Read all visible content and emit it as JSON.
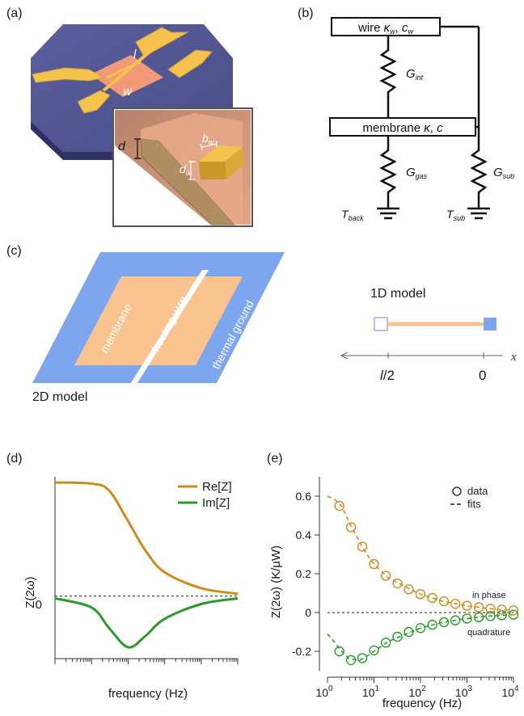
{
  "panels": {
    "a": {
      "label": "(a)",
      "dims": {
        "l": "l",
        "w": "w",
        "d": "d",
        "dw": "d",
        "dw_sub": "w",
        "bw": "b",
        "bw_sub": "w"
      }
    },
    "b": {
      "label": "(b)",
      "wire_box": {
        "text": "wire ",
        "kappa": "κ",
        "kappa_sub": "w",
        "sep": ", ",
        "c": "c",
        "c_sub": "w"
      },
      "membrane_box": {
        "text": "membrane ",
        "kappa": "κ",
        "sep": ", ",
        "c": "c"
      },
      "g_int": {
        "g": "G",
        "sub": "int"
      },
      "g_gas": {
        "g": "G",
        "sub": "gas"
      },
      "g_sub": {
        "g": "G",
        "sub": "sub"
      },
      "t_back": {
        "t": "T",
        "sub": "back"
      },
      "t_sub": {
        "t": "T",
        "sub": "sub"
      }
    },
    "c": {
      "label": "(c)",
      "membrane": "membrane",
      "heating_wire": "heating wire",
      "thermal_ground": "thermal ground",
      "model_2d": "2D model",
      "model_1d": "1D model",
      "axis_var": "x",
      "tick_half": {
        "l": "l",
        "rest": "/2"
      },
      "tick_zero": "0"
    },
    "d": {
      "label": "(d)",
      "ylabel": "Z(2ω)",
      "xlabel": "frequency (Hz)",
      "y_zero_tick": "0",
      "legend": [
        "Re[Z]",
        "Im[Z]"
      ]
    },
    "e": {
      "label": "(e)",
      "ylabel": "Z(2ω) (K/μW)",
      "xlabel": "frequency (Hz)",
      "legend": [
        "data",
        "fits"
      ],
      "annot_in_phase": "in phase",
      "annot_quadrature": "quadrature",
      "xtick_base": "10",
      "xtick_exps": [
        "0",
        "1",
        "2",
        "3",
        "4"
      ],
      "yticks": [
        "0.6",
        "0.4",
        "0.2",
        "0",
        "-0.2"
      ]
    }
  },
  "colors": {
    "re": "#d08a1c",
    "im": "#2a9a2a",
    "substrate": "#5c609a",
    "pad": "#f5c24e",
    "membrane_pink": "#f29a78",
    "blue": "#7ea6ee",
    "orange": "#f8c38e"
  },
  "chart_data": [
    {
      "type": "line",
      "panel": "d",
      "xscale": "log",
      "xlabel": "frequency (Hz)",
      "ylabel": "Z(2ω)",
      "series": [
        {
          "name": "Re[Z]",
          "x": [
            0.1,
            1,
            3,
            10,
            30,
            100,
            1000,
            10000
          ],
          "y": [
            1.0,
            0.99,
            0.93,
            0.66,
            0.4,
            0.21,
            0.07,
            0.02
          ]
        },
        {
          "name": "Im[Z]",
          "x": [
            0.1,
            1,
            3,
            10,
            30,
            100,
            1000,
            10000
          ],
          "y": [
            -0.02,
            -0.1,
            -0.28,
            -0.45,
            -0.35,
            -0.2,
            -0.07,
            -0.02
          ]
        }
      ]
    },
    {
      "type": "scatter",
      "panel": "e",
      "xscale": "log",
      "xlim": [
        1,
        10000
      ],
      "ylim": [
        -0.3,
        0.7
      ],
      "xlabel": "frequency (Hz)",
      "ylabel": "Z(2ω) (K/μW)",
      "series": [
        {
          "name": "in phase",
          "x": [
            1.8,
            3.2,
            5.6,
            10,
            18,
            32,
            56,
            100,
            180,
            320,
            560,
            1000,
            1800,
            3200,
            5600,
            10000
          ],
          "y": [
            0.55,
            0.44,
            0.34,
            0.25,
            0.19,
            0.15,
            0.12,
            0.095,
            0.075,
            0.058,
            0.045,
            0.035,
            0.027,
            0.02,
            0.015,
            0.011
          ]
        },
        {
          "name": "quadrature",
          "x": [
            1.8,
            3.2,
            5.6,
            10,
            18,
            32,
            56,
            100,
            180,
            320,
            560,
            1000,
            1800,
            3200,
            5600,
            10000
          ],
          "y": [
            -0.2,
            -0.245,
            -0.235,
            -0.195,
            -0.155,
            -0.125,
            -0.1,
            -0.08,
            -0.063,
            -0.05,
            -0.04,
            -0.031,
            -0.024,
            -0.018,
            -0.014,
            -0.011
          ]
        },
        {
          "name": "in phase fit",
          "x": [
            1,
            1.5,
            2,
            3,
            5,
            7,
            10,
            20,
            50,
            100,
            300,
            1000,
            3000,
            10000
          ],
          "y": [
            0.6,
            0.58,
            0.55,
            0.46,
            0.36,
            0.3,
            0.25,
            0.18,
            0.13,
            0.095,
            0.058,
            0.035,
            0.02,
            0.011
          ]
        },
        {
          "name": "quadrature fit",
          "x": [
            1,
            1.5,
            2,
            3,
            5,
            7,
            10,
            20,
            50,
            100,
            300,
            1000,
            3000,
            10000
          ],
          "y": [
            -0.11,
            -0.16,
            -0.2,
            -0.24,
            -0.245,
            -0.225,
            -0.2,
            -0.15,
            -0.11,
            -0.08,
            -0.05,
            -0.031,
            -0.018,
            -0.011
          ]
        }
      ]
    }
  ]
}
